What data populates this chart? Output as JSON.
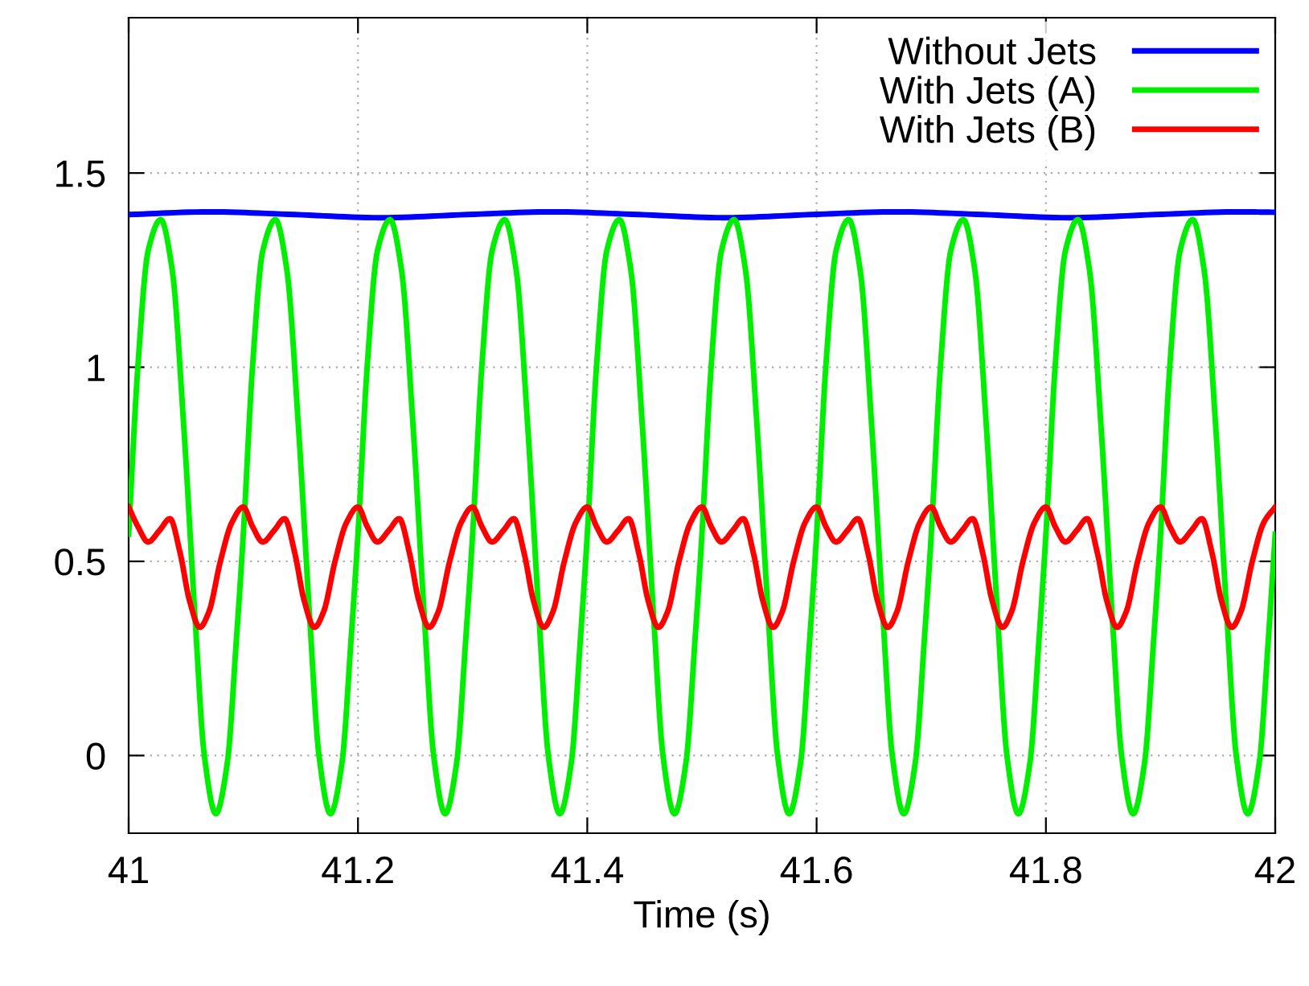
{
  "chart_data": {
    "type": "line",
    "xlabel": "Time (s)",
    "xlim": [
      41,
      42
    ],
    "xticks": [
      41,
      41.2,
      41.4,
      41.6,
      41.8,
      42
    ],
    "ylim": [
      -0.2,
      1.9
    ],
    "yticks": [
      0,
      0.5,
      1,
      1.5
    ],
    "grid": true,
    "legend": "top right",
    "line_style": "solid",
    "marker": "none",
    "series": [
      {
        "name": "Without Jets",
        "color": "#0000ff",
        "x": [
          41.0,
          41.07,
          41.145,
          41.22,
          41.295,
          41.37,
          41.445,
          41.52,
          41.595,
          41.67,
          41.745,
          41.82,
          41.895,
          41.97,
          42.0
        ],
        "values": [
          1.393,
          1.4,
          1.393,
          1.385,
          1.393,
          1.4,
          1.393,
          1.385,
          1.393,
          1.4,
          1.393,
          1.385,
          1.393,
          1.4,
          1.399
        ]
      },
      {
        "name": "With Jets (A)",
        "color": "#00ee00",
        "x": [
          41.0,
          41.008,
          41.017,
          41.028,
          41.038,
          41.048,
          41.058,
          41.066,
          41.076,
          41.086,
          41.094,
          41.1,
          41.108,
          41.117,
          41.128,
          41.138,
          41.148,
          41.158,
          41.166,
          41.176,
          41.186,
          41.194,
          41.2,
          41.208,
          41.217,
          41.228,
          41.238,
          41.248,
          41.258,
          41.266,
          41.276,
          41.286,
          41.294,
          41.3,
          41.308,
          41.317,
          41.328,
          41.338,
          41.348,
          41.358,
          41.366,
          41.376,
          41.386,
          41.394,
          41.4,
          41.408,
          41.417,
          41.428,
          41.438,
          41.448,
          41.458,
          41.466,
          41.476,
          41.486,
          41.494,
          41.5,
          41.508,
          41.517,
          41.528,
          41.538,
          41.548,
          41.558,
          41.566,
          41.576,
          41.586,
          41.594,
          41.6,
          41.608,
          41.617,
          41.628,
          41.638,
          41.648,
          41.658,
          41.666,
          41.676,
          41.686,
          41.694,
          41.7,
          41.708,
          41.717,
          41.728,
          41.738,
          41.748,
          41.758,
          41.766,
          41.776,
          41.786,
          41.794,
          41.8,
          41.808,
          41.817,
          41.828,
          41.838,
          41.848,
          41.858,
          41.866,
          41.876,
          41.886,
          41.894,
          41.9,
          41.908,
          41.917,
          41.928,
          41.938,
          41.948,
          41.958,
          41.966,
          41.976,
          41.986,
          41.994,
          42.0
        ],
        "values": [
          0.57,
          1.0,
          1.3,
          1.38,
          1.25,
          0.85,
          0.35,
          0.0,
          -0.15,
          -0.02,
          0.3,
          0.57,
          1.0,
          1.3,
          1.38,
          1.25,
          0.85,
          0.35,
          0.0,
          -0.15,
          -0.02,
          0.3,
          0.57,
          1.0,
          1.3,
          1.38,
          1.25,
          0.85,
          0.35,
          0.0,
          -0.15,
          -0.02,
          0.3,
          0.57,
          1.0,
          1.3,
          1.38,
          1.25,
          0.85,
          0.35,
          0.0,
          -0.15,
          -0.02,
          0.3,
          0.57,
          1.0,
          1.3,
          1.38,
          1.25,
          0.85,
          0.35,
          0.0,
          -0.15,
          -0.02,
          0.3,
          0.57,
          1.0,
          1.3,
          1.38,
          1.25,
          0.85,
          0.35,
          0.0,
          -0.15,
          -0.02,
          0.3,
          0.57,
          1.0,
          1.3,
          1.38,
          1.25,
          0.85,
          0.35,
          0.0,
          -0.15,
          -0.02,
          0.3,
          0.57,
          1.0,
          1.3,
          1.38,
          1.25,
          0.85,
          0.35,
          0.0,
          -0.15,
          -0.02,
          0.3,
          0.57,
          1.0,
          1.3,
          1.38,
          1.25,
          0.85,
          0.35,
          0.0,
          -0.15,
          -0.02,
          0.3,
          0.57,
          1.0,
          1.3,
          1.38,
          1.25,
          0.85,
          0.35,
          0.0,
          -0.15,
          -0.02,
          0.3,
          0.57
        ]
      },
      {
        "name": "With Jets (B)",
        "color": "#ff0000",
        "x": [
          41.0,
          41.008,
          41.017,
          41.027,
          41.036,
          41.045,
          41.053,
          41.062,
          41.07,
          41.08,
          41.09,
          41.1,
          41.108,
          41.117,
          41.127,
          41.136,
          41.145,
          41.153,
          41.162,
          41.17,
          41.18,
          41.19,
          41.2,
          41.208,
          41.217,
          41.227,
          41.236,
          41.245,
          41.253,
          41.262,
          41.27,
          41.28,
          41.29,
          41.3,
          41.308,
          41.317,
          41.327,
          41.336,
          41.345,
          41.353,
          41.362,
          41.37,
          41.38,
          41.39,
          41.4,
          41.408,
          41.417,
          41.427,
          41.436,
          41.445,
          41.453,
          41.462,
          41.47,
          41.48,
          41.49,
          41.5,
          41.508,
          41.517,
          41.527,
          41.536,
          41.545,
          41.553,
          41.562,
          41.57,
          41.58,
          41.59,
          41.6,
          41.608,
          41.617,
          41.627,
          41.636,
          41.645,
          41.653,
          41.662,
          41.67,
          41.68,
          41.69,
          41.7,
          41.708,
          41.717,
          41.727,
          41.736,
          41.745,
          41.753,
          41.762,
          41.77,
          41.78,
          41.79,
          41.8,
          41.808,
          41.817,
          41.827,
          41.836,
          41.845,
          41.853,
          41.862,
          41.87,
          41.88,
          41.89,
          41.9,
          41.908,
          41.917,
          41.927,
          41.936,
          41.945,
          41.953,
          41.962,
          41.97,
          41.98,
          41.99,
          42.0
        ],
        "values": [
          0.64,
          0.59,
          0.55,
          0.58,
          0.61,
          0.52,
          0.4,
          0.33,
          0.37,
          0.5,
          0.6,
          0.64,
          0.59,
          0.55,
          0.58,
          0.61,
          0.52,
          0.4,
          0.33,
          0.37,
          0.5,
          0.6,
          0.64,
          0.59,
          0.55,
          0.58,
          0.61,
          0.52,
          0.4,
          0.33,
          0.37,
          0.5,
          0.6,
          0.64,
          0.59,
          0.55,
          0.58,
          0.61,
          0.52,
          0.4,
          0.33,
          0.37,
          0.5,
          0.6,
          0.64,
          0.59,
          0.55,
          0.58,
          0.61,
          0.52,
          0.4,
          0.33,
          0.37,
          0.5,
          0.6,
          0.64,
          0.59,
          0.55,
          0.58,
          0.61,
          0.52,
          0.4,
          0.33,
          0.37,
          0.5,
          0.6,
          0.64,
          0.59,
          0.55,
          0.58,
          0.61,
          0.52,
          0.4,
          0.33,
          0.37,
          0.5,
          0.6,
          0.64,
          0.59,
          0.55,
          0.58,
          0.61,
          0.52,
          0.4,
          0.33,
          0.37,
          0.5,
          0.6,
          0.64,
          0.59,
          0.55,
          0.58,
          0.61,
          0.52,
          0.4,
          0.33,
          0.37,
          0.5,
          0.6,
          0.64,
          0.59,
          0.55,
          0.58,
          0.61,
          0.52,
          0.4,
          0.33,
          0.37,
          0.5,
          0.6,
          0.64
        ]
      }
    ]
  }
}
